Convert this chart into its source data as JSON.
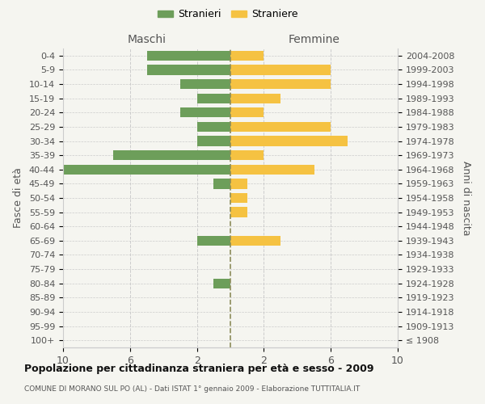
{
  "age_groups": [
    "100+",
    "95-99",
    "90-94",
    "85-89",
    "80-84",
    "75-79",
    "70-74",
    "65-69",
    "60-64",
    "55-59",
    "50-54",
    "45-49",
    "40-44",
    "35-39",
    "30-34",
    "25-29",
    "20-24",
    "15-19",
    "10-14",
    "5-9",
    "0-4"
  ],
  "birth_years": [
    "≤ 1908",
    "1909-1913",
    "1914-1918",
    "1919-1923",
    "1924-1928",
    "1929-1933",
    "1934-1938",
    "1939-1943",
    "1944-1948",
    "1949-1953",
    "1954-1958",
    "1959-1963",
    "1964-1968",
    "1969-1973",
    "1974-1978",
    "1979-1983",
    "1984-1988",
    "1989-1993",
    "1994-1998",
    "1999-2003",
    "2004-2008"
  ],
  "males": [
    0,
    0,
    0,
    0,
    1,
    0,
    0,
    2,
    0,
    0,
    0,
    1,
    10,
    7,
    2,
    2,
    3,
    2,
    3,
    5,
    5
  ],
  "females": [
    0,
    0,
    0,
    0,
    0,
    0,
    0,
    3,
    0,
    1,
    1,
    1,
    5,
    2,
    7,
    6,
    2,
    3,
    6,
    6,
    2
  ],
  "male_color": "#6d9e5a",
  "female_color": "#f5c242",
  "background_color": "#f5f5f0",
  "grid_color": "#cccccc",
  "center_line_color": "#8c8c5a",
  "title": "Popolazione per cittadinanza straniera per età e sesso - 2009",
  "subtitle": "COMUNE DI MORANO SUL PO (AL) - Dati ISTAT 1° gennaio 2009 - Elaborazione TUTTITALIA.IT",
  "xlabel_left": "Maschi",
  "xlabel_right": "Femmine",
  "ylabel_left": "Fasce di età",
  "ylabel_right": "Anni di nascita",
  "legend_male": "Stranieri",
  "legend_female": "Straniere",
  "xlim": 10
}
